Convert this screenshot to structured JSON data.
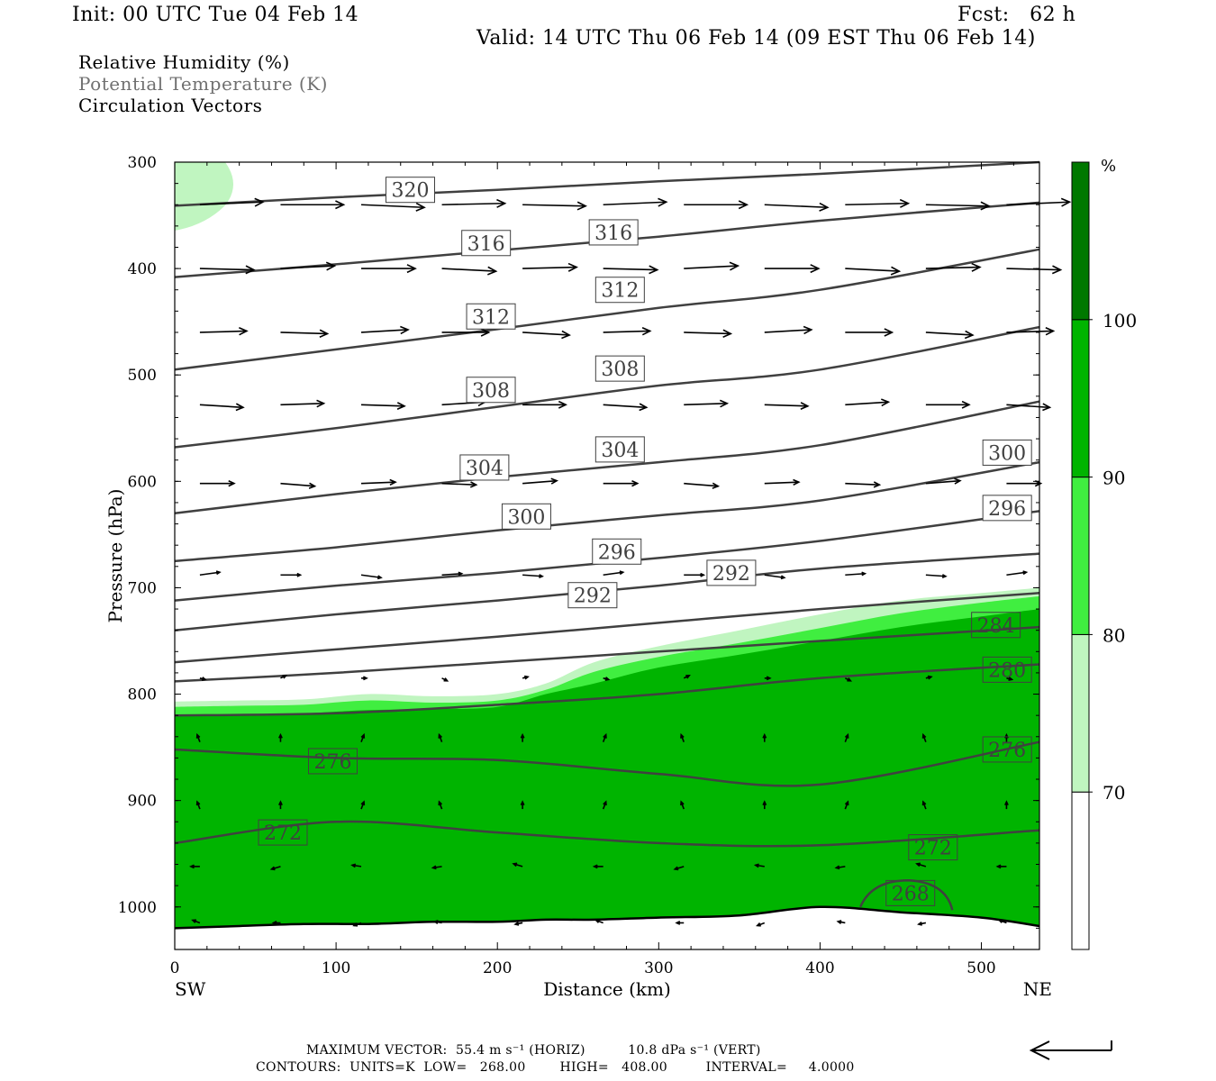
{
  "header": {
    "init": "Init: 00 UTC Tue 04 Feb 14",
    "fcst": "Fcst:   62 h",
    "valid": "Valid: 14 UTC Thu 06 Feb 14 (09 EST Thu 06 Feb 14)"
  },
  "legend": {
    "rh": "Relative Humidity (%)",
    "theta": "Potential Temperature (K)",
    "vectors": "Circulation Vectors"
  },
  "colors": {
    "rh_70_80": "#c0f5c0",
    "rh_80_90": "#40ee40",
    "rh_90_100": "#00b400",
    "rh_100": "#007800",
    "contour": "#404040",
    "terrain": "#000000"
  },
  "footer": {
    "max_vector": "MAXIMUM VECTOR:  55.4 m s⁻¹ (HORIZ)          10.8 dPa s⁻¹ (VERT)",
    "contours": "CONTOURS:  UNITS=K  LOW=   268.00        HIGH=   408.00         INTERVAL=     4.0000"
  },
  "chart_data": {
    "type": "heatmap",
    "xlabel": "Distance (km)",
    "ylabel": "Pressure (hPa)",
    "x_ticks": [
      0,
      100,
      200,
      300,
      400,
      500
    ],
    "y_ticks": [
      300,
      400,
      500,
      600,
      700,
      800,
      900,
      1000
    ],
    "xlim": [
      0,
      536
    ],
    "ylim": [
      1040,
      300
    ],
    "left_end_label": "SW",
    "right_end_label": "NE",
    "colorbar": {
      "unit": "%",
      "levels": [
        70,
        80,
        90,
        100
      ],
      "tick_labels": [
        "70",
        "80",
        "90",
        "100"
      ]
    },
    "rh_regions": [
      {
        "level": "70-80",
        "top_pressure": [
          807,
          806,
          805,
          800,
          802,
          800,
          790,
          770,
          755,
          740,
          725,
          712,
          705,
          700
        ]
      },
      {
        "level": "80-90",
        "top_pressure": [
          812,
          811,
          810,
          806,
          808,
          806,
          796,
          779,
          765,
          752,
          738,
          724,
          714,
          708
        ]
      },
      {
        "level": "90-100",
        "top_pressure": [
          820,
          819,
          818,
          815,
          814,
          812,
          800,
          790,
          775,
          763,
          750,
          737,
          727,
          720
        ]
      }
    ],
    "rh_x": [
      0,
      40,
      80,
      120,
      160,
      200,
      230,
      260,
      300,
      350,
      400,
      450,
      500,
      536
    ],
    "theta_x": [
      0,
      100,
      200,
      300,
      400,
      536
    ],
    "theta_contours": [
      {
        "value": 272,
        "p": [
          940,
          920,
          930,
          940,
          942,
          928
        ]
      },
      {
        "value": 276,
        "p": [
          852,
          860,
          862,
          875,
          885,
          845
        ]
      },
      {
        "value": 280,
        "p": [
          820,
          818,
          810,
          800,
          785,
          772
        ]
      },
      {
        "value": 284,
        "p": [
          788,
          780,
          770,
          760,
          750,
          737
        ]
      },
      {
        "value": 288,
        "p": [
          770,
          758,
          746,
          733,
          720,
          705
        ]
      },
      {
        "value": 292,
        "p": [
          740,
          725,
          712,
          698,
          682,
          668
        ]
      },
      {
        "value": 296,
        "p": [
          712,
          698,
          686,
          672,
          656,
          628
        ]
      },
      {
        "value": 300,
        "p": [
          675,
          662,
          646,
          632,
          618,
          582
        ]
      },
      {
        "value": 304,
        "p": [
          630,
          612,
          596,
          582,
          566,
          525
        ]
      },
      {
        "value": 308,
        "p": [
          568,
          550,
          530,
          510,
          495,
          455
        ]
      },
      {
        "value": 312,
        "p": [
          495,
          476,
          457,
          437,
          420,
          382
        ]
      },
      {
        "value": 316,
        "p": [
          408,
          396,
          383,
          370,
          355,
          338
        ]
      },
      {
        "value": 320,
        "p": [
          341,
          333,
          326,
          318,
          311,
          300
        ]
      }
    ],
    "theta_labels": [
      {
        "text": "320",
        "x": 146,
        "p": 326
      },
      {
        "text": "316",
        "x": 193,
        "p": 376
      },
      {
        "text": "316",
        "x": 272,
        "p": 366
      },
      {
        "text": "312",
        "x": 276,
        "p": 420
      },
      {
        "text": "312",
        "x": 196,
        "p": 445
      },
      {
        "text": "308",
        "x": 276,
        "p": 494
      },
      {
        "text": "308",
        "x": 196,
        "p": 514
      },
      {
        "text": "304",
        "x": 276,
        "p": 570
      },
      {
        "text": "304",
        "x": 192,
        "p": 587
      },
      {
        "text": "300",
        "x": 516,
        "p": 573
      },
      {
        "text": "300",
        "x": 218,
        "p": 633
      },
      {
        "text": "296",
        "x": 516,
        "p": 625
      },
      {
        "text": "296",
        "x": 274,
        "p": 666
      },
      {
        "text": "292",
        "x": 345,
        "p": 686
      },
      {
        "text": "292",
        "x": 259,
        "p": 707
      },
      {
        "text": "284",
        "x": 509,
        "p": 735
      },
      {
        "text": "280",
        "x": 516,
        "p": 777
      },
      {
        "text": "276",
        "x": 98,
        "p": 863
      },
      {
        "text": "276",
        "x": 516,
        "p": 852
      },
      {
        "text": "272",
        "x": 67,
        "p": 930
      },
      {
        "text": "272",
        "x": 470,
        "p": 944
      },
      {
        "text": "268",
        "x": 456,
        "p": 987
      }
    ],
    "terrain_surface_p": [
      1020,
      1018,
      1016,
      1016,
      1014,
      1014,
      1012,
      1012,
      1010,
      1008,
      1000,
      1005,
      1010,
      1018
    ]
  }
}
